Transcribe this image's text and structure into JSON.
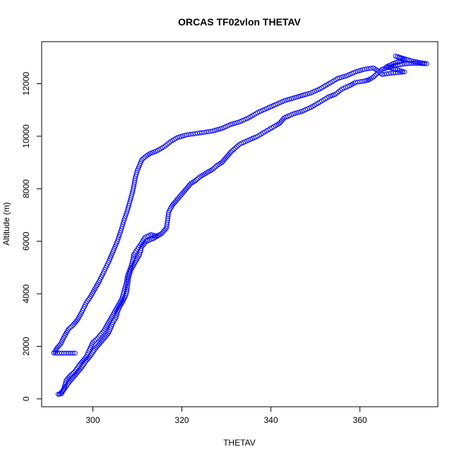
{
  "chart_data": {
    "type": "scatter",
    "title": "ORCAS TF02vlon THETAV",
    "xlabel": "THETAV",
    "ylabel": "Altitude (m)",
    "xlim": [
      288.5,
      377.5
    ],
    "ylim": [
      -300,
      13600
    ],
    "xticks": [
      300,
      320,
      340,
      360
    ],
    "yticks": [
      0,
      2000,
      4000,
      6000,
      8000,
      10000,
      12000
    ],
    "grid": false,
    "marker": "open-circle",
    "point_color": "#0000ff",
    "series": [
      {
        "path": [
          [
            292.2,
            180
          ],
          [
            293.0,
            200
          ],
          [
            293.5,
            400
          ],
          [
            294.0,
            700
          ],
          [
            295.0,
            900
          ],
          [
            296.0,
            1050
          ],
          [
            297.0,
            1300
          ],
          [
            298.0,
            1500
          ],
          [
            298.5,
            1600
          ],
          [
            299.3,
            1900
          ],
          [
            300.0,
            2150
          ],
          [
            301.0,
            2300
          ],
          [
            302.5,
            2600
          ],
          [
            303.5,
            2900
          ],
          [
            304.5,
            3200
          ],
          [
            305.5,
            3500
          ],
          [
            306.5,
            3800
          ],
          [
            307.0,
            4100
          ],
          [
            307.5,
            4400
          ],
          [
            307.8,
            4700
          ],
          [
            308.5,
            5000
          ],
          [
            309.0,
            5300
          ],
          [
            309.2,
            5500
          ],
          [
            310.0,
            5700
          ],
          [
            310.8,
            5900
          ],
          [
            311.7,
            6150
          ],
          [
            313.0,
            6250
          ],
          [
            314.5,
            6200
          ],
          [
            315.5,
            6300
          ],
          [
            316.5,
            6500
          ],
          [
            316.8,
            6800
          ],
          [
            317.0,
            7100
          ],
          [
            317.6,
            7300
          ],
          [
            318.0,
            7400
          ],
          [
            319.0,
            7600
          ],
          [
            320.0,
            7800
          ],
          [
            321.0,
            8000
          ],
          [
            322.0,
            8200
          ],
          [
            323.0,
            8300
          ],
          [
            324.0,
            8450
          ],
          [
            325.0,
            8550
          ],
          [
            326.0,
            8650
          ],
          [
            327.0,
            8750
          ],
          [
            328.0,
            8900
          ],
          [
            329.0,
            9000
          ],
          [
            330.0,
            9200
          ],
          [
            331.0,
            9400
          ],
          [
            332.0,
            9550
          ],
          [
            333.0,
            9700
          ],
          [
            335.0,
            9850
          ],
          [
            337.0,
            10000
          ],
          [
            339.0,
            10200
          ],
          [
            341.0,
            10400
          ],
          [
            342.0,
            10500
          ],
          [
            343.0,
            10700
          ],
          [
            345.0,
            10850
          ],
          [
            347.0,
            10950
          ],
          [
            349.0,
            11100
          ],
          [
            351.0,
            11300
          ],
          [
            353.0,
            11500
          ],
          [
            354.5,
            11600
          ],
          [
            356.0,
            11800
          ],
          [
            358.0,
            11950
          ],
          [
            359.0,
            12050
          ],
          [
            361.0,
            12100
          ],
          [
            362.0,
            12150
          ]
        ]
      },
      {
        "path": [
          [
            362.0,
            12150
          ],
          [
            363.0,
            12250
          ],
          [
            364.0,
            12400
          ],
          [
            365.0,
            12550
          ],
          [
            366.0,
            12600
          ],
          [
            368.0,
            12700
          ],
          [
            370.0,
            12750
          ],
          [
            372.0,
            12780
          ],
          [
            375.0,
            12760
          ],
          [
            372.0,
            12850
          ],
          [
            370.0,
            12950
          ],
          [
            368.0,
            13050
          ],
          [
            370.0,
            12900
          ],
          [
            368.0,
            12800
          ],
          [
            366.0,
            12650
          ],
          [
            368.0,
            12550
          ],
          [
            370.0,
            12450
          ],
          [
            367.0,
            12400
          ],
          [
            365.0,
            12350
          ],
          [
            364.0,
            12500
          ],
          [
            363.0,
            12600
          ],
          [
            361.0,
            12550
          ],
          [
            359.0,
            12450
          ],
          [
            357.0,
            12300
          ],
          [
            355.0,
            12200
          ],
          [
            353.0,
            12000
          ],
          [
            351.0,
            11800
          ],
          [
            349.0,
            11650
          ],
          [
            347.0,
            11550
          ],
          [
            345.0,
            11450
          ],
          [
            343.0,
            11350
          ],
          [
            341.0,
            11200
          ],
          [
            339.0,
            11050
          ],
          [
            337.0,
            10900
          ],
          [
            335.0,
            10700
          ],
          [
            333.0,
            10550
          ],
          [
            331.0,
            10450
          ],
          [
            329.0,
            10300
          ],
          [
            327.0,
            10200
          ],
          [
            325.0,
            10150
          ],
          [
            323.0,
            10100
          ],
          [
            321.0,
            10050
          ],
          [
            319.0,
            9950
          ],
          [
            317.5,
            9800
          ],
          [
            316.0,
            9600
          ],
          [
            314.5,
            9450
          ],
          [
            313.0,
            9350
          ],
          [
            312.0,
            9250
          ],
          [
            311.0,
            9100
          ],
          [
            310.5,
            8900
          ],
          [
            310.0,
            8700
          ],
          [
            309.5,
            8400
          ],
          [
            309.2,
            8100
          ],
          [
            308.8,
            7800
          ],
          [
            308.3,
            7500
          ],
          [
            307.8,
            7200
          ],
          [
            307.0,
            6800
          ],
          [
            306.3,
            6400
          ],
          [
            305.5,
            6000
          ],
          [
            304.5,
            5600
          ],
          [
            303.5,
            5200
          ],
          [
            302.5,
            4850
          ],
          [
            301.5,
            4500
          ],
          [
            300.5,
            4200
          ],
          [
            299.5,
            3900
          ],
          [
            298.5,
            3650
          ],
          [
            297.5,
            3300
          ],
          [
            296.5,
            3000
          ],
          [
            295.5,
            2800
          ],
          [
            294.5,
            2650
          ],
          [
            293.5,
            2350
          ],
          [
            292.8,
            2100
          ],
          [
            292.0,
            1950
          ],
          [
            291.5,
            1800
          ],
          [
            291.2,
            1750
          ],
          [
            292.0,
            1740
          ],
          [
            293.5,
            1740
          ],
          [
            295.0,
            1740
          ],
          [
            296.0,
            1740
          ]
        ]
      },
      {
        "path": [
          [
            292.5,
            180
          ],
          [
            293.5,
            350
          ],
          [
            294.5,
            600
          ],
          [
            295.5,
            800
          ],
          [
            296.5,
            1000
          ],
          [
            297.5,
            1200
          ],
          [
            298.5,
            1450
          ],
          [
            299.5,
            1650
          ],
          [
            300.5,
            1900
          ],
          [
            301.5,
            2100
          ],
          [
            302.5,
            2300
          ],
          [
            303.5,
            2500
          ],
          [
            304.0,
            2700
          ],
          [
            304.5,
            2900
          ],
          [
            305.2,
            3100
          ],
          [
            305.5,
            3300
          ],
          [
            306.0,
            3500
          ],
          [
            306.5,
            3650
          ],
          [
            307.0,
            3800
          ],
          [
            307.5,
            4000
          ],
          [
            307.8,
            4300
          ],
          [
            308.0,
            4600
          ],
          [
            308.5,
            4900
          ],
          [
            309.5,
            5200
          ],
          [
            310.5,
            5500
          ],
          [
            311.0,
            5800
          ],
          [
            312.0,
            6000
          ],
          [
            313.5,
            6100
          ],
          [
            314.5,
            6200
          ]
        ]
      }
    ]
  }
}
